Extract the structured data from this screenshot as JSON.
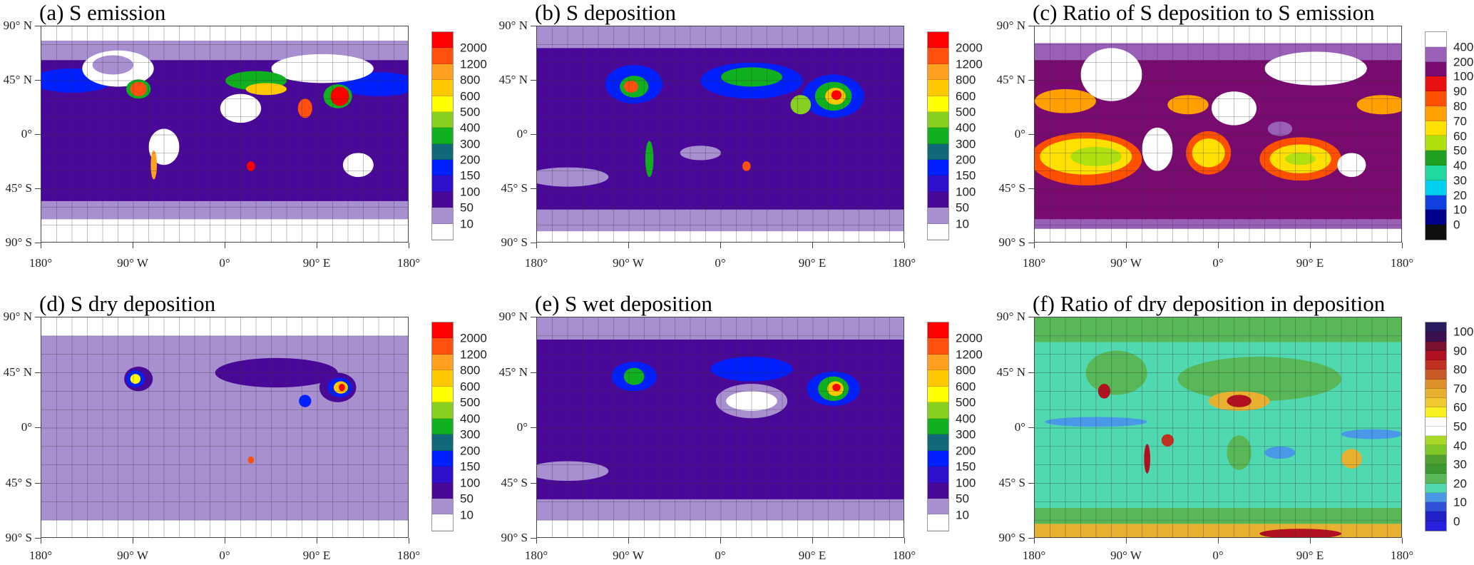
{
  "axes": {
    "lat_ticks": [
      "90° N",
      "45° N",
      "0°",
      "45° S",
      "90° S"
    ],
    "lon_ticks": [
      "180°",
      "90°  W",
      "0°",
      "90° E",
      "180°"
    ]
  },
  "chart_data": [
    {
      "type": "heatmap",
      "id": "a",
      "title": "(a) S emission",
      "colorbar": {
        "labels": [
          "2000",
          "1200",
          "800",
          "600",
          "500",
          "400",
          "300",
          "200",
          "150",
          "100",
          "50",
          "10"
        ],
        "colors": [
          "#ff0000",
          "#ff5010",
          "#ffa020",
          "#ffc800",
          "#ffff00",
          "#88d020",
          "#10b020",
          "#106878",
          "#0020ff",
          "#3010c8",
          "#4a0898",
          "#a890d0",
          "#ffffff"
        ]
      }
    },
    {
      "type": "heatmap",
      "id": "b",
      "title": "(b) S deposition",
      "colorbar": {
        "labels": [
          "2000",
          "1200",
          "800",
          "600",
          "500",
          "400",
          "300",
          "200",
          "150",
          "100",
          "50",
          "10"
        ],
        "colors": [
          "#ff0000",
          "#ff5010",
          "#ffa020",
          "#ffc800",
          "#ffff00",
          "#88d020",
          "#10b020",
          "#106878",
          "#0020ff",
          "#3010c8",
          "#4a0898",
          "#a890d0",
          "#ffffff"
        ]
      }
    },
    {
      "type": "heatmap",
      "id": "c",
      "title": "(c) Ratio of S deposition to S emission",
      "colorbar": {
        "labels": [
          "400",
          "200",
          "100",
          "90",
          "80",
          "70",
          "60",
          "50",
          "40",
          "30",
          "20",
          "10",
          "0"
        ],
        "colors": [
          "#ffffff",
          "#9a60b8",
          "#780a70",
          "#e81010",
          "#ff5000",
          "#ffa000",
          "#ffe000",
          "#b0e010",
          "#20a020",
          "#20d8a0",
          "#00d0f0",
          "#1040e0",
          "#00008a",
          "#101010"
        ]
      }
    },
    {
      "type": "heatmap",
      "id": "d",
      "title": "(d) S dry deposition",
      "colorbar": {
        "labels": [
          "2000",
          "1200",
          "800",
          "600",
          "500",
          "400",
          "300",
          "200",
          "150",
          "100",
          "50",
          "10"
        ],
        "colors": [
          "#ff0000",
          "#ff5010",
          "#ffa020",
          "#ffc800",
          "#ffff00",
          "#88d020",
          "#10b020",
          "#106878",
          "#0020ff",
          "#3010c8",
          "#4a0898",
          "#a890d0",
          "#ffffff"
        ]
      }
    },
    {
      "type": "heatmap",
      "id": "e",
      "title": "(e) S wet deposition",
      "colorbar": {
        "labels": [
          "2000",
          "1200",
          "800",
          "600",
          "500",
          "400",
          "300",
          "200",
          "150",
          "100",
          "50",
          "10"
        ],
        "colors": [
          "#ff0000",
          "#ff5010",
          "#ffa020",
          "#ffc800",
          "#ffff00",
          "#88d020",
          "#10b020",
          "#106878",
          "#0020ff",
          "#3010c8",
          "#4a0898",
          "#a890d0",
          "#ffffff"
        ]
      }
    },
    {
      "type": "heatmap",
      "id": "f",
      "title": "(f) Ratio of dry deposition in deposition",
      "colorbar": {
        "labels": [
          "100",
          "90",
          "80",
          "70",
          "60",
          "50",
          "40",
          "30",
          "20",
          "10",
          "0"
        ],
        "colors": [
          "#2a1a5e",
          "#3b1050",
          "#7a1030",
          "#b01020",
          "#c03020",
          "#c85a28",
          "#e0902a",
          "#e8b030",
          "#f0c830",
          "#f8f020",
          "#ffffff",
          "#ffffff",
          "#a8d828",
          "#80c828",
          "#50a030",
          "#3c9830",
          "#58b858",
          "#50d8b0",
          "#4a98e8",
          "#3050d8",
          "#2020c8",
          "#2a20e0"
        ],
        "label_every": 2
      }
    }
  ]
}
